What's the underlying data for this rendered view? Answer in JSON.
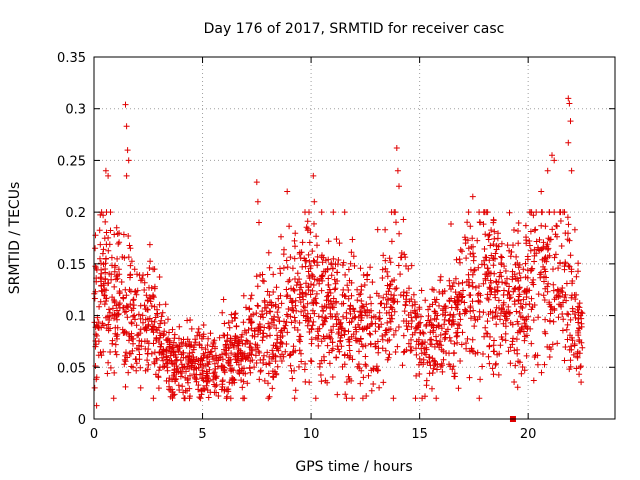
{
  "chart_data": {
    "type": "scatter",
    "title": "Day 176 of 2017, SRMTID for receiver casc",
    "xlabel": "GPS time / hours",
    "ylabel": "SRMTID / TECUs",
    "xlim": [
      0,
      24
    ],
    "ylim": [
      0,
      0.35
    ],
    "xticks": [
      "0",
      "5",
      "10",
      "15",
      "20"
    ],
    "yticks": [
      "0",
      "0.05",
      "0.1",
      "0.15",
      "0.2",
      "0.25",
      "0.3",
      "0.35"
    ],
    "grid": true,
    "marker": "+",
    "color": "#e00000",
    "profile": [
      [
        0.0,
        0.09
      ],
      [
        0.5,
        0.13
      ],
      [
        1.0,
        0.11
      ],
      [
        1.5,
        0.12
      ],
      [
        2.0,
        0.09
      ],
      [
        2.5,
        0.09
      ],
      [
        3.0,
        0.08
      ],
      [
        3.5,
        0.06
      ],
      [
        4.0,
        0.05
      ],
      [
        4.5,
        0.05
      ],
      [
        5.0,
        0.05
      ],
      [
        5.5,
        0.055
      ],
      [
        6.0,
        0.06
      ],
      [
        6.5,
        0.06
      ],
      [
        7.0,
        0.065
      ],
      [
        7.5,
        0.08
      ],
      [
        8.0,
        0.08
      ],
      [
        8.5,
        0.09
      ],
      [
        9.0,
        0.1
      ],
      [
        9.5,
        0.11
      ],
      [
        10.0,
        0.12
      ],
      [
        10.5,
        0.11
      ],
      [
        11.0,
        0.1
      ],
      [
        11.5,
        0.1
      ],
      [
        12.0,
        0.09
      ],
      [
        12.5,
        0.085
      ],
      [
        13.0,
        0.08
      ],
      [
        13.5,
        0.1
      ],
      [
        14.0,
        0.13
      ],
      [
        14.5,
        0.11
      ],
      [
        15.0,
        0.08
      ],
      [
        15.5,
        0.075
      ],
      [
        16.0,
        0.08
      ],
      [
        16.5,
        0.1
      ],
      [
        17.0,
        0.11
      ],
      [
        17.5,
        0.12
      ],
      [
        18.0,
        0.13
      ],
      [
        18.5,
        0.12
      ],
      [
        19.0,
        0.11
      ],
      [
        19.5,
        0.11
      ],
      [
        20.0,
        0.12
      ],
      [
        20.5,
        0.13
      ],
      [
        21.0,
        0.14
      ],
      [
        21.5,
        0.13
      ],
      [
        22.0,
        0.11
      ],
      [
        22.5,
        0.07
      ]
    ],
    "outliers": [
      [
        0.05,
        0.165
      ],
      [
        0.12,
        0.013
      ],
      [
        0.55,
        0.24
      ],
      [
        0.65,
        0.235
      ],
      [
        1.45,
        0.304
      ],
      [
        1.5,
        0.283
      ],
      [
        1.55,
        0.26
      ],
      [
        1.6,
        0.25
      ],
      [
        1.5,
        0.235
      ],
      [
        7.5,
        0.229
      ],
      [
        7.55,
        0.21
      ],
      [
        7.6,
        0.19
      ],
      [
        8.9,
        0.22
      ],
      [
        10.1,
        0.235
      ],
      [
        10.15,
        0.21
      ],
      [
        13.95,
        0.262
      ],
      [
        14.0,
        0.24
      ],
      [
        14.05,
        0.225
      ],
      [
        17.45,
        0.215
      ],
      [
        20.6,
        0.22
      ],
      [
        20.9,
        0.24
      ],
      [
        21.1,
        0.255
      ],
      [
        21.2,
        0.25
      ],
      [
        21.85,
        0.31
      ],
      [
        21.9,
        0.305
      ],
      [
        21.95,
        0.288
      ],
      [
        21.85,
        0.267
      ],
      [
        22.0,
        0.24
      ]
    ],
    "special_points": [
      [
        19.3,
        0.0
      ]
    ]
  }
}
